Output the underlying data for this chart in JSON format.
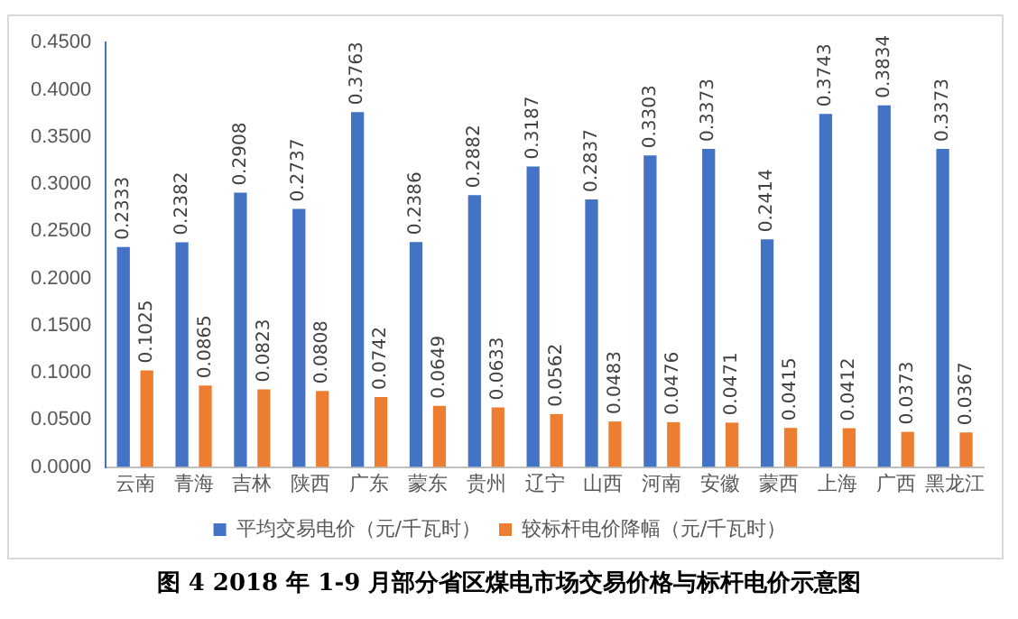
{
  "chart_data": {
    "type": "bar",
    "annotations": [
      "图 4 2018 年 1-9 月部分省区煤电市场交易价格与标杆电价示意图"
    ],
    "categories": [
      "云南",
      "青海",
      "吉林",
      "陕西",
      "广东",
      "蒙东",
      "贵州",
      "辽宁",
      "山西",
      "河南",
      "安徽",
      "蒙西",
      "上海",
      "广西",
      "黑龙江"
    ],
    "series": [
      {
        "name": "平均交易电价（元/千瓦时）",
        "color": "#4472c4",
        "values": [
          0.2333,
          0.2382,
          0.2908,
          0.2737,
          0.3763,
          0.2386,
          0.2882,
          0.3187,
          0.2837,
          0.3303,
          0.3373,
          0.2414,
          0.3743,
          0.3834,
          0.3373
        ]
      },
      {
        "name": "较标杆电价降幅（元/千瓦时）",
        "color": "#ed7d31",
        "values": [
          0.1025,
          0.0865,
          0.0823,
          0.0808,
          0.0742,
          0.0649,
          0.0633,
          0.0562,
          0.0483,
          0.0476,
          0.0471,
          0.0415,
          0.0412,
          0.0373,
          0.0367
        ]
      }
    ],
    "ylim": [
      0,
      0.45
    ],
    "yticks": [
      {
        "value": 0,
        "label": "0.0000"
      },
      {
        "value": 0.05,
        "label": "0.0500"
      },
      {
        "value": 0.1,
        "label": "0.1000"
      },
      {
        "value": 0.15,
        "label": "0.1500"
      },
      {
        "value": 0.2,
        "label": "0.2000"
      },
      {
        "value": 0.25,
        "label": "0.2500"
      },
      {
        "value": 0.3,
        "label": "0.3000"
      },
      {
        "value": 0.35,
        "label": "0.3500"
      },
      {
        "value": 0.4,
        "label": "0.4000"
      },
      {
        "value": 0.45,
        "label": "0.4500"
      }
    ],
    "grid": false,
    "legend": "bottom",
    "data_labels": true
  }
}
